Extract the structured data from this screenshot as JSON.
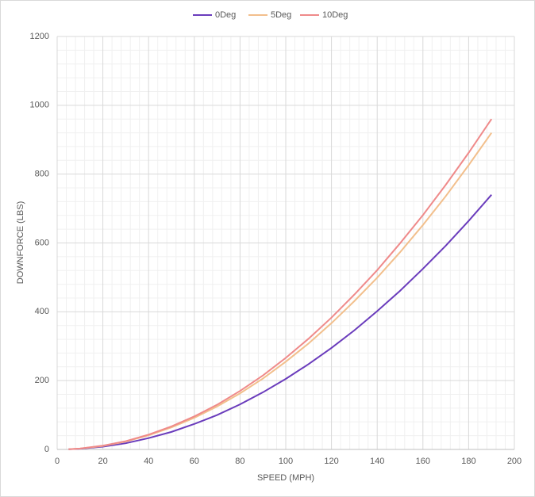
{
  "chart_data": {
    "type": "line",
    "x_label": "SPEED (MPH)",
    "y_label": "DOWNFORCE (LBS)",
    "x": [
      5,
      10,
      20,
      30,
      40,
      50,
      60,
      70,
      80,
      90,
      100,
      110,
      120,
      130,
      140,
      150,
      160,
      170,
      180,
      190
    ],
    "series": [
      {
        "name": "0Deg",
        "color": "#6a3cbc",
        "values": [
          0.5,
          2,
          8,
          18,
          33,
          51,
          74,
          100,
          131,
          166,
          205,
          248,
          295,
          346,
          402,
          461,
          525,
          592,
          664,
          740
        ]
      },
      {
        "name": "5Deg",
        "color": "#f2bf8c",
        "values": [
          0.6,
          2.5,
          10,
          23,
          41,
          64,
          92,
          125,
          163,
          206,
          255,
          308,
          367,
          431,
          499,
          573,
          652,
          736,
          826,
          920
        ]
      },
      {
        "name": "10Deg",
        "color": "#ef8a8a",
        "values": [
          0.7,
          2.7,
          11,
          24,
          43,
          67,
          96,
          130,
          170,
          215,
          266,
          322,
          383,
          450,
          521,
          599,
          681,
          769,
          862,
          960
        ]
      }
    ],
    "xlim": [
      0,
      200
    ],
    "xticks": [
      0,
      20,
      40,
      60,
      80,
      100,
      120,
      140,
      160,
      180,
      200
    ],
    "ylim": [
      0,
      1200
    ],
    "yticks": [
      0,
      200,
      400,
      600,
      800,
      1000,
      1200
    ],
    "grid": true,
    "minor_grid": true,
    "legend": "top"
  }
}
